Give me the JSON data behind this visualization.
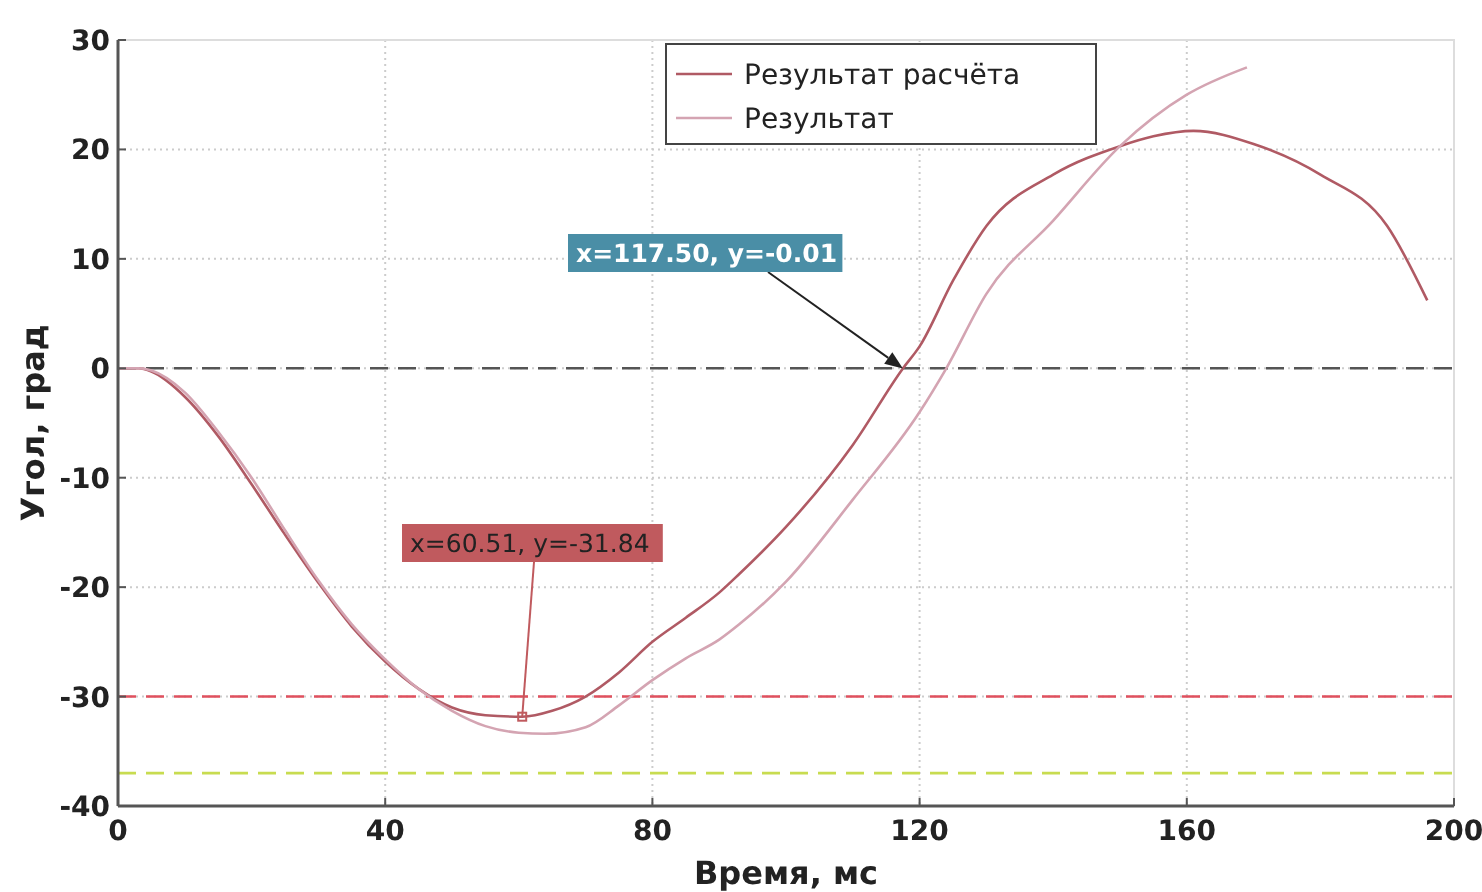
{
  "chart_data": {
    "type": "line",
    "xlabel": "Время, мс",
    "ylabel": "Угол, град",
    "xlim": [
      0,
      200
    ],
    "ylim": [
      -40,
      30
    ],
    "xticks": [
      0,
      40,
      80,
      120,
      160,
      200
    ],
    "yticks": [
      -40,
      -30,
      -20,
      -10,
      0,
      10,
      20,
      30
    ],
    "grid": true,
    "legend": "top",
    "line_style": "solid",
    "marker": "none",
    "series": [
      {
        "name": "Результат расчёта",
        "color": "#b05a64",
        "x": [
          0,
          3,
          5,
          10,
          15,
          20,
          25,
          30,
          35,
          40,
          45,
          50,
          55,
          60.51,
          65,
          70,
          75,
          80,
          85,
          90,
          93,
          100,
          110,
          117.5,
          120,
          125,
          130,
          140,
          150,
          155,
          161,
          170,
          180,
          190,
          196
        ],
        "values": [
          0,
          0,
          -0.3,
          -2.6,
          -6.2,
          -10.6,
          -15.2,
          -19.6,
          -23.6,
          -26.8,
          -29.3,
          -31,
          -31.7,
          -31.84,
          -31.3,
          -30,
          -27.8,
          -25,
          -22.8,
          -20.5,
          -18.8,
          -14.5,
          -7,
          -0.01,
          2,
          8,
          13,
          17.7,
          20.3,
          21.2,
          21.7,
          20.5,
          17.7,
          13,
          6.2
        ]
      },
      {
        "name": "Результат",
        "color": "#d4a4b2",
        "x": [
          0,
          3,
          5,
          10,
          15,
          20,
          25,
          30,
          35,
          40,
          45,
          50,
          55,
          60,
          64,
          70,
          75,
          80,
          85,
          90,
          93,
          100,
          110,
          120,
          124,
          130,
          140,
          150,
          160,
          169
        ],
        "values": [
          0,
          0,
          -0.2,
          -2.2,
          -5.8,
          -10,
          -14.8,
          -19.4,
          -23.4,
          -26.6,
          -29.3,
          -31.3,
          -32.7,
          -33.3,
          -33.4,
          -32.8,
          -30.8,
          -28.5,
          -26.5,
          -24.8,
          -23.4,
          -19.5,
          -12,
          -4,
          0,
          6.8,
          13.5,
          20.3,
          25,
          27.5
        ]
      }
    ],
    "ref_lines": [
      {
        "axis": "y",
        "value": 0,
        "color": "#555555",
        "line_style": "dashed"
      },
      {
        "axis": "y",
        "value": -30,
        "color": "#e0505e",
        "line_style": "dashed"
      },
      {
        "axis": "y",
        "value": -37,
        "color": "#c8dc50",
        "line_style": "dashed"
      }
    ],
    "annotations": [
      "x=117.50, y=-0.01",
      {
        "text": "x=60.51, y=-31.84",
        "x": 60.51,
        "y": -31.84
      }
    ]
  }
}
